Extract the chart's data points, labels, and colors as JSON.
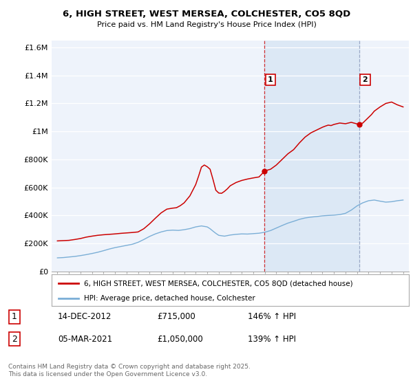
{
  "title_line1": "6, HIGH STREET, WEST MERSEA, COLCHESTER, CO5 8QD",
  "title_line2": "Price paid vs. HM Land Registry's House Price Index (HPI)",
  "legend_entry1": "6, HIGH STREET, WEST MERSEA, COLCHESTER, CO5 8QD (detached house)",
  "legend_entry2": "HPI: Average price, detached house, Colchester",
  "sale1_date": "14-DEC-2012",
  "sale1_price": "£715,000",
  "sale1_hpi": "146% ↑ HPI",
  "sale1_year": 2012.96,
  "sale1_value": 715000,
  "sale2_date": "05-MAR-2021",
  "sale2_price": "£1,050,000",
  "sale2_hpi": "139% ↑ HPI",
  "sale2_year": 2021.17,
  "sale2_value": 1050000,
  "footnote": "Contains HM Land Registry data © Crown copyright and database right 2025.\nThis data is licensed under the Open Government Licence v3.0.",
  "line_color_red": "#cc0000",
  "line_color_blue": "#7aaed6",
  "bg_color": "#eef3fb",
  "span_color": "#dce8f5",
  "ylim_min": 0,
  "ylim_max": 1650000,
  "xlim_min": 1994.5,
  "xlim_max": 2025.5,
  "yticks": [
    0,
    200000,
    400000,
    600000,
    800000,
    1000000,
    1200000,
    1400000,
    1600000
  ],
  "ytick_labels": [
    "£0",
    "£200K",
    "£400K",
    "£600K",
    "£800K",
    "£1M",
    "£1.2M",
    "£1.4M",
    "£1.6M"
  ],
  "xticks": [
    1995,
    1996,
    1997,
    1998,
    1999,
    2000,
    2001,
    2002,
    2003,
    2004,
    2005,
    2006,
    2007,
    2008,
    2009,
    2010,
    2011,
    2012,
    2013,
    2014,
    2015,
    2016,
    2017,
    2018,
    2019,
    2020,
    2021,
    2022,
    2023,
    2024,
    2025
  ],
  "hpi_years": [
    1995,
    1995.5,
    1996,
    1996.5,
    1997,
    1997.5,
    1998,
    1998.5,
    1999,
    1999.5,
    2000,
    2000.5,
    2001,
    2001.5,
    2002,
    2002.5,
    2003,
    2003.5,
    2004,
    2004.5,
    2005,
    2005.5,
    2006,
    2006.5,
    2007,
    2007.5,
    2008,
    2008.25,
    2008.5,
    2008.75,
    2009,
    2009.5,
    2010,
    2010.5,
    2011,
    2011.5,
    2012,
    2012.5,
    2013,
    2013.5,
    2014,
    2014.5,
    2015,
    2015.5,
    2016,
    2016.5,
    2017,
    2017.5,
    2018,
    2018.5,
    2019,
    2019.5,
    2020,
    2020.5,
    2021,
    2021.5,
    2022,
    2022.5,
    2023,
    2023.5,
    2024,
    2024.5,
    2025
  ],
  "hpi_vals": [
    97000,
    99000,
    103000,
    107000,
    113000,
    120000,
    128000,
    137000,
    148000,
    160000,
    170000,
    178000,
    186000,
    194000,
    208000,
    228000,
    250000,
    268000,
    282000,
    292000,
    295000,
    293000,
    298000,
    306000,
    318000,
    325000,
    318000,
    305000,
    288000,
    272000,
    258000,
    252000,
    260000,
    265000,
    268000,
    267000,
    270000,
    273000,
    280000,
    292000,
    310000,
    328000,
    345000,
    358000,
    372000,
    382000,
    388000,
    392000,
    397000,
    400000,
    402000,
    406000,
    415000,
    438000,
    468000,
    490000,
    505000,
    510000,
    502000,
    495000,
    498000,
    505000,
    510000
  ],
  "prop_years": [
    1995,
    1995.5,
    1996,
    1996.5,
    1997,
    1997.5,
    1998,
    1998.5,
    1999,
    1999.5,
    2000,
    2000.5,
    2001,
    2001.5,
    2002,
    2002.5,
    2003,
    2003.5,
    2004,
    2004.5,
    2005,
    2005.33,
    2005.67,
    2006,
    2006.5,
    2007,
    2007.25,
    2007.5,
    2007.75,
    2008,
    2008.25,
    2008.5,
    2008.75,
    2009,
    2009.25,
    2009.5,
    2009.75,
    2010,
    2010.5,
    2011,
    2011.5,
    2012,
    2012.5,
    2012.96,
    2013,
    2013.5,
    2014,
    2014.5,
    2015,
    2015.5,
    2016,
    2016.5,
    2017,
    2017.5,
    2018,
    2018.25,
    2018.5,
    2018.75,
    2019,
    2019.5,
    2020,
    2020.5,
    2021.17,
    2021.5,
    2022,
    2022.25,
    2022.5,
    2022.75,
    2023,
    2023.5,
    2024,
    2024.5,
    2025
  ],
  "prop_vals": [
    218000,
    220000,
    222000,
    228000,
    235000,
    245000,
    252000,
    258000,
    262000,
    265000,
    268000,
    272000,
    275000,
    278000,
    282000,
    305000,
    340000,
    380000,
    418000,
    445000,
    452000,
    455000,
    470000,
    490000,
    540000,
    620000,
    680000,
    745000,
    760000,
    748000,
    730000,
    658000,
    580000,
    560000,
    558000,
    572000,
    590000,
    612000,
    635000,
    650000,
    660000,
    668000,
    675000,
    715000,
    718000,
    730000,
    760000,
    800000,
    840000,
    870000,
    918000,
    960000,
    990000,
    1010000,
    1030000,
    1038000,
    1045000,
    1042000,
    1050000,
    1060000,
    1055000,
    1065000,
    1050000,
    1060000,
    1100000,
    1120000,
    1145000,
    1160000,
    1175000,
    1200000,
    1210000,
    1190000,
    1175000
  ]
}
